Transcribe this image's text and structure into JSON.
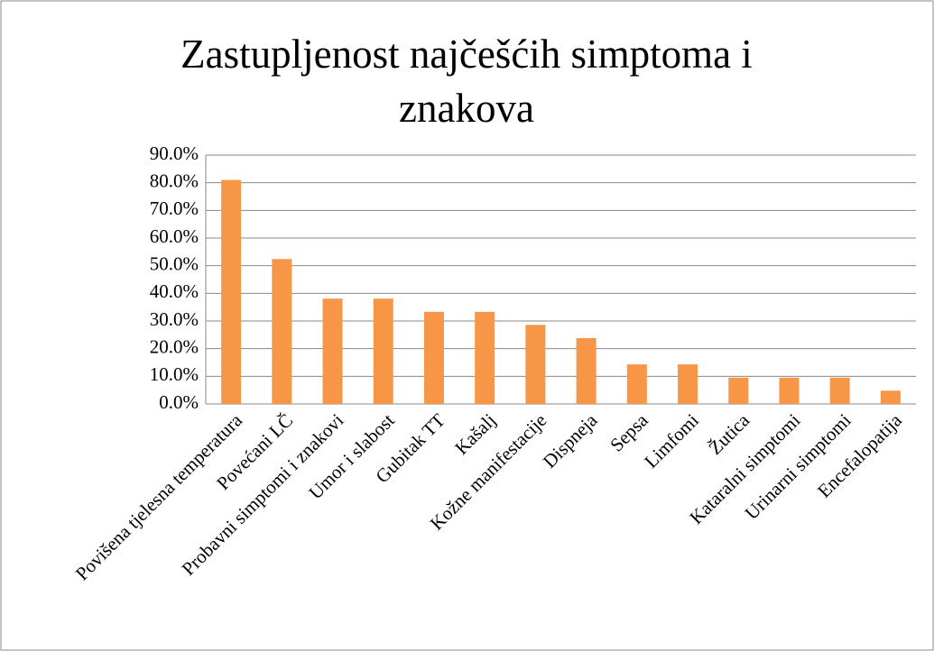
{
  "chart_data": {
    "type": "bar",
    "title": "Zastupljenost najčešćih simptoma i znakova",
    "categories": [
      "Povišena tjelesna temperatura",
      "Povećani LČ",
      "Probavni simptomi i znakovi",
      "Umor i slabost",
      "Gubitak TT",
      "Kašalj",
      "Kožne manifestacije",
      "Dispneja",
      "Sepsa",
      "Limfomi",
      "Žutica",
      "Kataralni simptomi",
      "Urinarni simptomi",
      "Encefalopatija"
    ],
    "values": [
      81,
      52.4,
      38.1,
      38.1,
      33.3,
      33.3,
      28.6,
      23.8,
      14.3,
      14.3,
      9.5,
      9.5,
      9.5,
      4.8
    ],
    "color": "#f79646",
    "ylim": [
      0,
      90
    ],
    "yticks": [
      {
        "value": 0,
        "label": "0.0%"
      },
      {
        "value": 10,
        "label": "10.0%"
      },
      {
        "value": 20,
        "label": "20.0%"
      },
      {
        "value": 30,
        "label": "30.0%"
      },
      {
        "value": 40,
        "label": "40.0%"
      },
      {
        "value": 50,
        "label": "50.0%"
      },
      {
        "value": 60,
        "label": "60.0%"
      },
      {
        "value": 70,
        "label": "70.0%"
      },
      {
        "value": 80,
        "label": "80.0%"
      },
      {
        "value": 90,
        "label": "90.0%"
      }
    ],
    "grid": true
  }
}
